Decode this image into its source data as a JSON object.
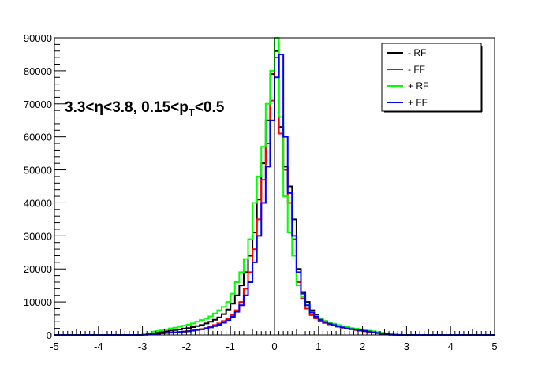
{
  "chart_data": {
    "type": "line",
    "step_histogram": true,
    "annotation": {
      "main": "3.3<η<3.8, 0.15<p",
      "sub": "T",
      "tail": "<0.5"
    },
    "xlim": [
      -5,
      5
    ],
    "ylim": [
      0,
      90000
    ],
    "x_ticks": [
      "-5",
      "-4",
      "-3",
      "-2",
      "-1",
      "0",
      "1",
      "2",
      "3",
      "4",
      "5"
    ],
    "y_ticks": [
      "0",
      "10000",
      "20000",
      "30000",
      "40000",
      "50000",
      "60000",
      "70000",
      "80000",
      "90000"
    ],
    "grid": false,
    "legend_position": "top-right",
    "reference_line_x": 0,
    "bin_width": 0.1,
    "bin_edges": [
      -3.0,
      -2.9,
      -2.8,
      -2.7,
      -2.6,
      -2.5,
      -2.4,
      -2.3,
      -2.2,
      -2.1,
      -2.0,
      -1.9,
      -1.8,
      -1.7,
      -1.6,
      -1.5,
      -1.4,
      -1.3,
      -1.2,
      -1.1,
      -1.0,
      -0.9,
      -0.8,
      -0.7,
      -0.6,
      -0.5,
      -0.4,
      -0.3,
      -0.2,
      -0.1,
      0.0,
      0.1,
      0.2,
      0.3,
      0.4,
      0.5,
      0.6,
      0.7,
      0.8,
      0.9,
      1.0,
      1.1,
      1.2,
      1.3,
      1.4,
      1.5,
      1.6,
      1.7,
      1.8,
      1.9,
      2.0,
      2.1,
      2.2,
      2.3,
      2.4,
      2.5,
      2.6,
      2.7,
      2.8,
      2.9,
      3.0
    ],
    "series": [
      {
        "name": "- RF",
        "color": "#000000",
        "values": [
          100,
          300,
          500,
          700,
          900,
          1100,
          1300,
          1500,
          1700,
          1900,
          2100,
          2400,
          2700,
          3000,
          3500,
          4000,
          4600,
          5300,
          6300,
          7700,
          9500,
          12000,
          15000,
          19000,
          24000,
          31000,
          41000,
          52000,
          65000,
          79000,
          86000,
          63000,
          51000,
          45000,
          35000,
          20000,
          13000,
          10000,
          7500,
          6000,
          4800,
          4200,
          3600,
          3200,
          2800,
          2400,
          2100,
          1800,
          1600,
          1400,
          1200,
          1000,
          800,
          600,
          400,
          250,
          100,
          50,
          0,
          0
        ]
      },
      {
        "name": "- FF",
        "color": "#ff0000",
        "values": [
          100,
          200,
          300,
          400,
          500,
          600,
          700,
          800,
          900,
          1000,
          1200,
          1400,
          1600,
          1800,
          2100,
          2500,
          3000,
          3500,
          4200,
          5000,
          6000,
          7500,
          10000,
          14000,
          19000,
          26000,
          35000,
          47000,
          58000,
          71000,
          84000,
          61000,
          50000,
          40000,
          29000,
          16000,
          11000,
          8000,
          6000,
          5000,
          4200,
          3600,
          3200,
          2900,
          2500,
          2200,
          1900,
          1700,
          1500,
          1300,
          1100,
          900,
          700,
          500,
          350,
          200,
          100,
          50,
          0,
          0
        ]
      },
      {
        "name": "+ RF",
        "color": "#00ff00",
        "values": [
          100,
          500,
          1000,
          1200,
          1400,
          1700,
          2000,
          2200,
          2500,
          2800,
          3100,
          3500,
          4000,
          4500,
          5000,
          5600,
          6500,
          7500,
          8500,
          10000,
          12500,
          16000,
          19000,
          23000,
          29000,
          40000,
          48000,
          57000,
          70000,
          80000,
          90000,
          66000,
          42000,
          31000,
          24000,
          15000,
          11500,
          9000,
          7000,
          5700,
          4800,
          4200,
          3800,
          3400,
          3000,
          2700,
          2400,
          2100,
          1900,
          1700,
          1500,
          1300,
          1100,
          900,
          700,
          500,
          300,
          150,
          50,
          0
        ]
      },
      {
        "name": "+ FF",
        "color": "#0000ff",
        "values": [
          100,
          200,
          300,
          400,
          500,
          600,
          700,
          800,
          900,
          1000,
          1100,
          1300,
          1500,
          1700,
          2000,
          2300,
          2700,
          3100,
          3700,
          4500,
          5500,
          7000,
          9000,
          12000,
          16000,
          22000,
          30000,
          40000,
          51000,
          65000,
          78000,
          85000,
          60000,
          43000,
          30000,
          19000,
          12500,
          9000,
          6800,
          5500,
          4600,
          3900,
          3400,
          3000,
          2600,
          2300,
          2000,
          1800,
          1600,
          1400,
          1200,
          1000,
          800,
          600,
          400,
          250,
          100,
          50,
          0,
          0
        ]
      }
    ]
  }
}
